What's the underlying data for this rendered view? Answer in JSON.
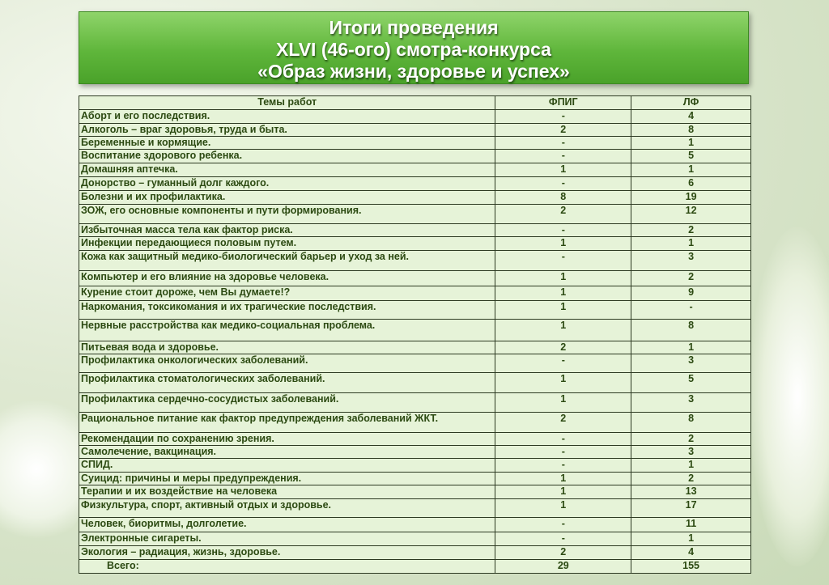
{
  "title": {
    "line1": "Итоги проведения",
    "line2": "XLVI (46-ого) смотра-конкурса",
    "line3": "«Образ жизни, здоровье и успех»"
  },
  "table": {
    "headers": [
      "Темы работ",
      "ФПИГ",
      "ЛФ"
    ],
    "rows": [
      [
        "Аборт и его последствия.",
        "-",
        "4"
      ],
      [
        "Алкоголь – враг здоровья, труда и быта.",
        "2",
        "8"
      ],
      [
        "Беременные и кормящие.",
        "-",
        "1"
      ],
      [
        "Воспитание здорового ребенка.",
        "-",
        "5"
      ],
      [
        "Домашняя аптечка.",
        "1",
        "1"
      ],
      [
        "Донорство – гуманный долг каждого.",
        "-",
        "6"
      ],
      [
        "Болезни и их профилактика.",
        "8",
        "19"
      ],
      [
        "ЗОЖ, его основные компоненты и пути формирования.",
        "2",
        "12"
      ],
      [
        "Избыточная масса тела как фактор риска.",
        "-",
        "2"
      ],
      [
        "Инфекции передающиеся половым путем.",
        "1",
        "1"
      ],
      [
        "Кожа как защитный медико-биологический барьер и уход за ней.",
        "-",
        "3"
      ],
      [
        "Компьютер и его влияние на здоровье человека.",
        "1",
        "2"
      ],
      [
        "Курение стоит дороже, чем Вы думаете!?",
        "1",
        "9"
      ],
      [
        "Наркомания, токсикомания и их трагические последствия.",
        "1",
        "-"
      ],
      [
        "Нервные расстройства как медико-социальная проблема.",
        "1",
        "8"
      ],
      [
        "Питьевая вода и здоровье.",
        "2",
        "1"
      ],
      [
        "Профилактика онкологических заболеваний.",
        "-",
        "3"
      ],
      [
        "Профилактика стоматологических заболеваний.",
        "1",
        "5"
      ],
      [
        "Профилактика сердечно-сосудистых заболеваний.",
        "1",
        "3"
      ],
      [
        "Рациональное питание как фактор предупреждения заболеваний ЖКТ.",
        "2",
        "8"
      ],
      [
        "Рекомендации по сохранению зрения.",
        "-",
        "2"
      ],
      [
        "Самолечение, вакцинация.",
        "-",
        "3"
      ],
      [
        "СПИД.",
        "-",
        "1"
      ],
      [
        "Суицид: причины и меры предупреждения.",
        "1",
        "2"
      ],
      [
        "Терапии и их воздействие на человека",
        "1",
        "13"
      ],
      [
        "Физкультура, спорт, активный отдых и здоровье.",
        "1",
        "17"
      ],
      [
        "Человек, биоритмы, долголетие.",
        "-",
        "11"
      ],
      [
        "Электронные сигареты.",
        "-",
        "1"
      ],
      [
        "Экология – радиация, жизнь, здоровье.",
        "2",
        "4"
      ]
    ],
    "total": [
      "Всего:",
      "29",
      "155"
    ]
  },
  "colors": {
    "title_green": "#5fb63b",
    "table_bg": "#e6f3d8",
    "text": "#2c4a12"
  }
}
